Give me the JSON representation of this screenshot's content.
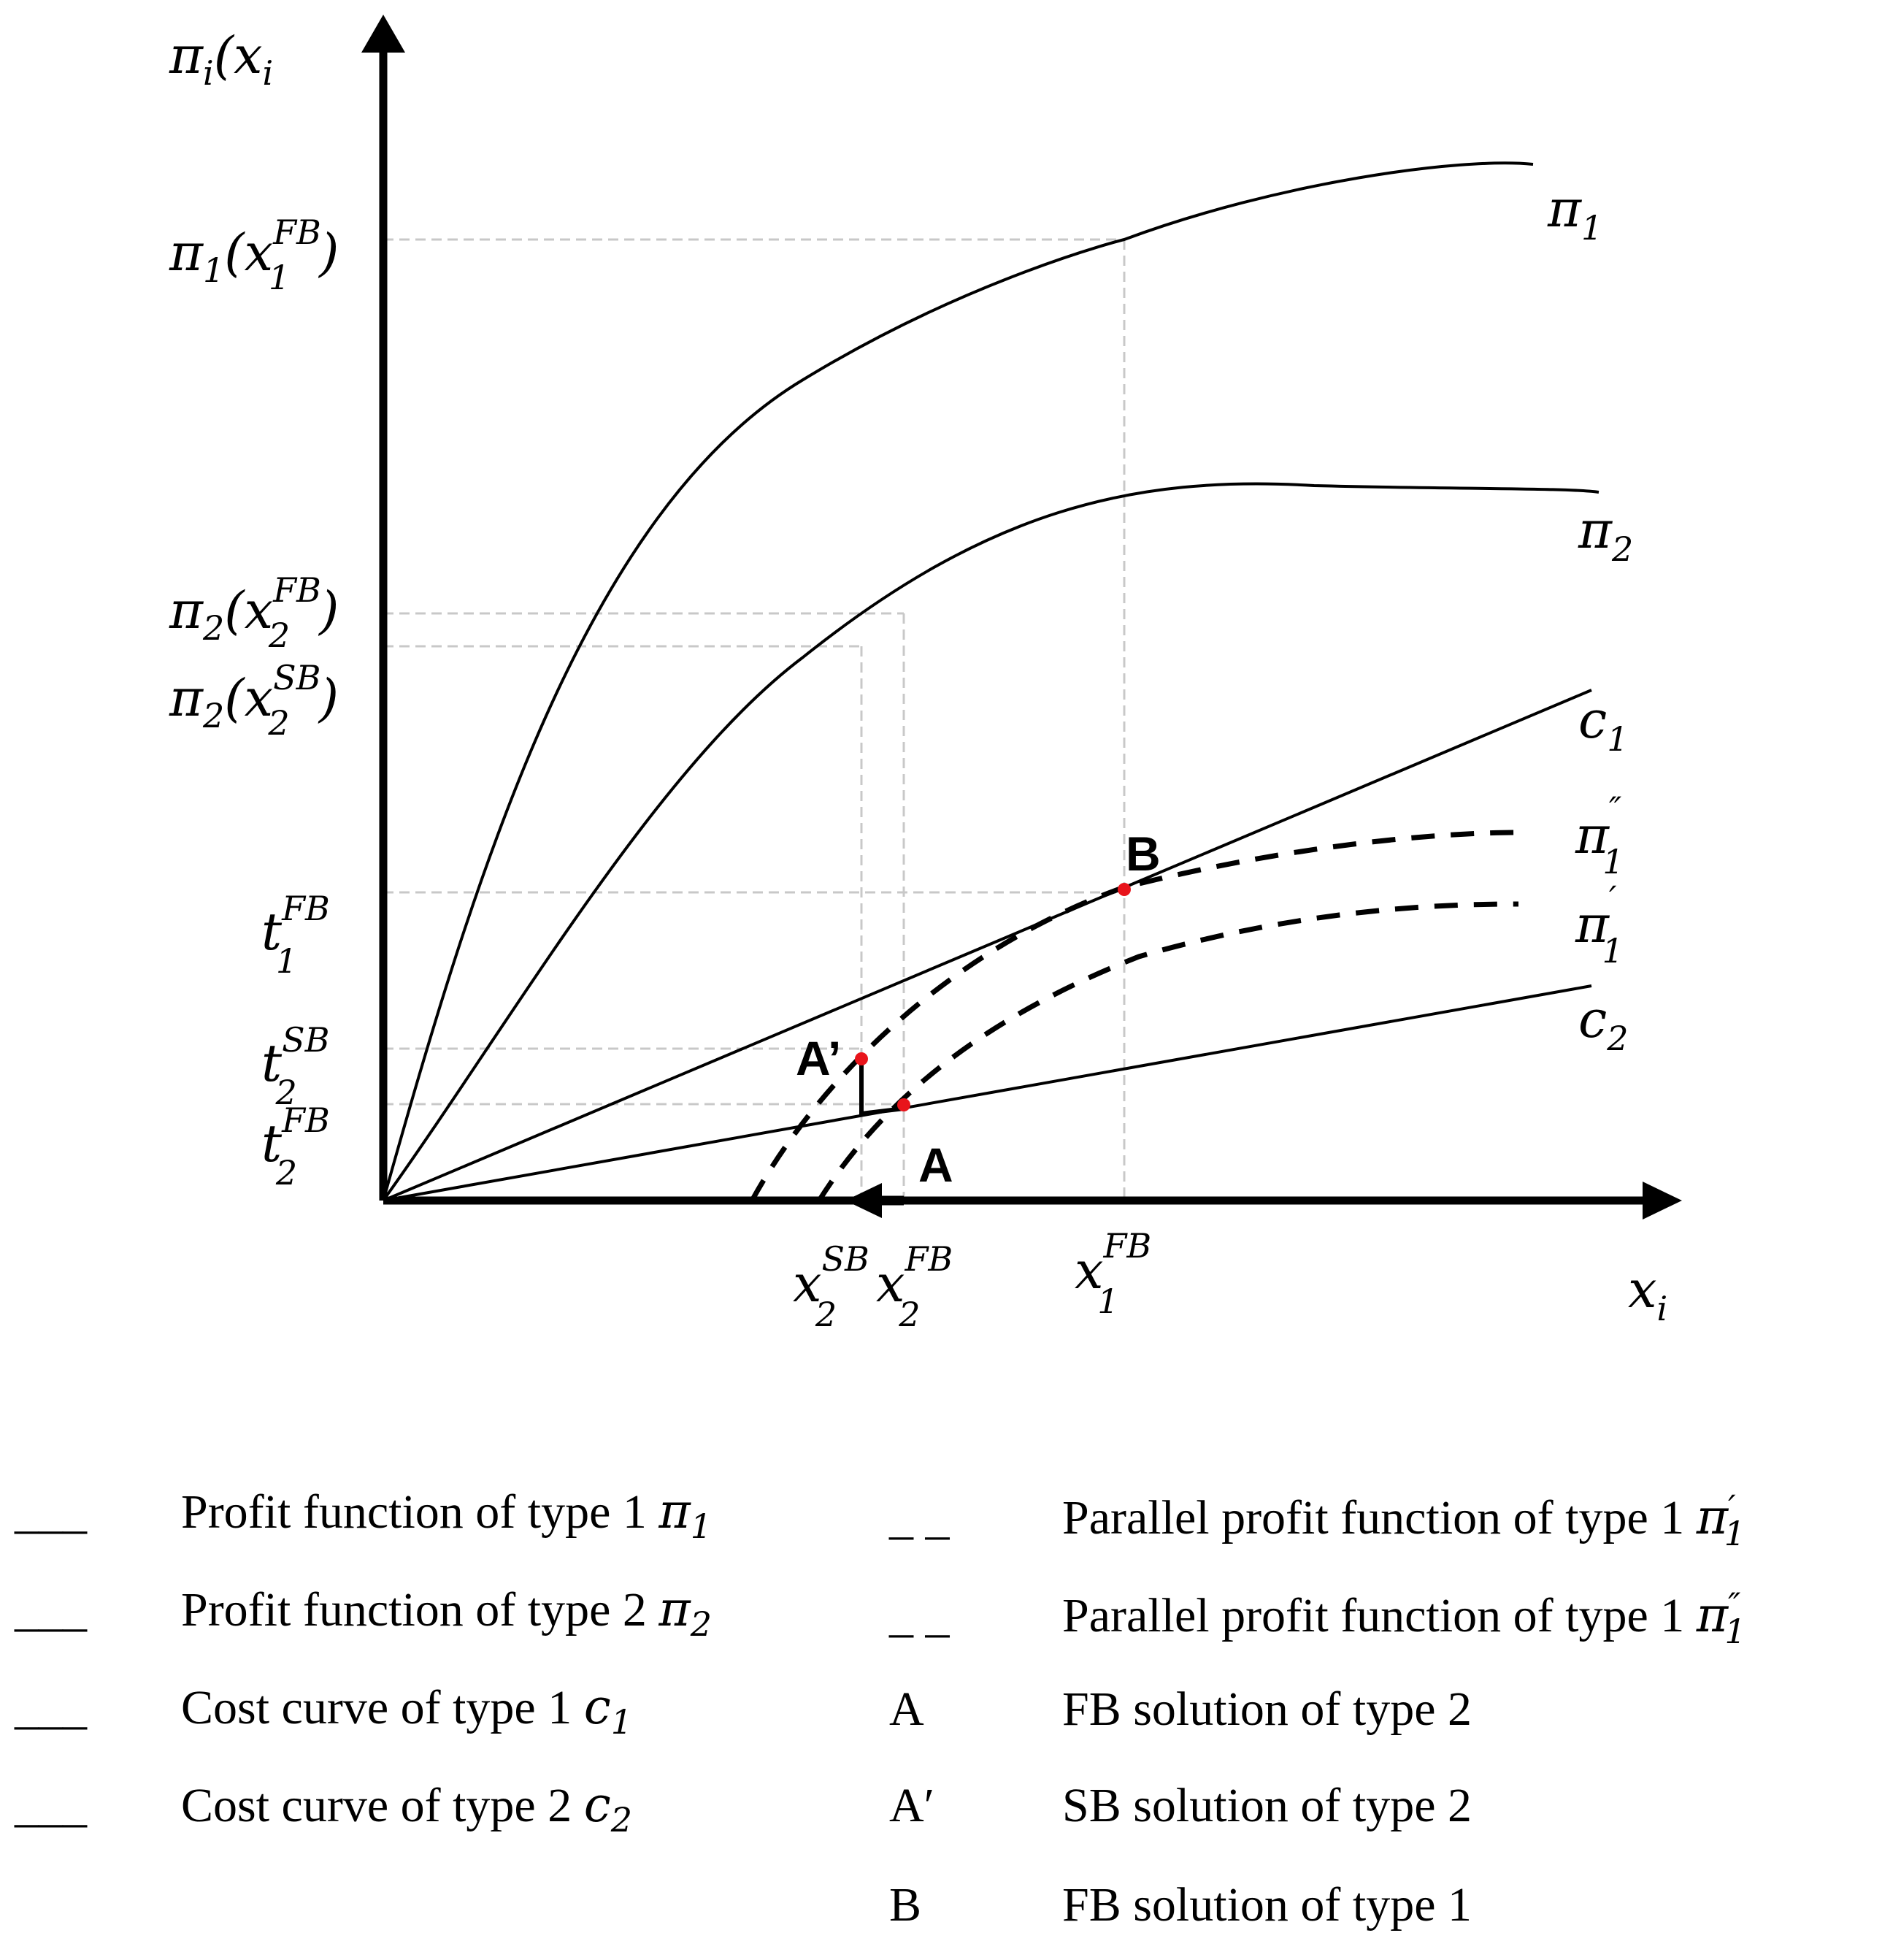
{
  "axes": {
    "y_label": {
      "base": "π",
      "sub": "i",
      "rest": "(x",
      "sub2": "i"
    },
    "x_label": {
      "base": "x",
      "sub": "i"
    }
  },
  "y_ticks": [
    {
      "id": "pi1-fb",
      "base": "π",
      "sub": "1",
      "open": "(x",
      "sup": "FB",
      "sub2": "1",
      "close": ")"
    },
    {
      "id": "pi2-fb",
      "base": "π",
      "sub": "2",
      "open": "(x",
      "sup": "FB",
      "sub2": "2",
      "close": ")"
    },
    {
      "id": "pi2-sb",
      "base": "π",
      "sub": "2",
      "open": "(x",
      "sup": "SB",
      "sub2": "2",
      "close": ")"
    },
    {
      "id": "t1-fb",
      "base": "t",
      "sup": "FB",
      "sub": "1"
    },
    {
      "id": "t2-sb",
      "base": "t",
      "sup": "SB",
      "sub": "2"
    },
    {
      "id": "t2-fb",
      "base": "t",
      "sup": "FB",
      "sub": "2"
    }
  ],
  "x_ticks": [
    {
      "id": "x2-sb",
      "base": "x",
      "sup": "SB",
      "sub": "2"
    },
    {
      "id": "x2-fb",
      "base": "x",
      "sup": "FB",
      "sub": "2"
    },
    {
      "id": "x1-fb",
      "base": "x",
      "sup": "FB",
      "sub": "1"
    }
  ],
  "curves": [
    {
      "id": "pi1",
      "base": "π",
      "sub": "1",
      "style": "solid"
    },
    {
      "id": "pi2",
      "base": "π",
      "sub": "2",
      "style": "solid"
    },
    {
      "id": "c1",
      "base": "c",
      "sub": "1",
      "style": "solid"
    },
    {
      "id": "pi1-dprime",
      "base": "π",
      "sup": "″",
      "sub": "1",
      "style": "dashed"
    },
    {
      "id": "pi1-prime",
      "base": "π",
      "sup": "′",
      "sub": "1",
      "style": "dashed"
    },
    {
      "id": "c2",
      "base": "c",
      "sub": "2",
      "style": "solid"
    }
  ],
  "points": [
    {
      "id": "A",
      "label": "A",
      "color": "#e8141b"
    },
    {
      "id": "A-prime",
      "label": "A’",
      "color": "#e8141b"
    },
    {
      "id": "B",
      "label": "B",
      "color": "#e8141b"
    }
  ],
  "legend": {
    "left": [
      {
        "symbol": "___",
        "text": "Profit function of type 1 ",
        "math_base": "π",
        "math_sub": "1"
      },
      {
        "symbol": "___",
        "text": "Profit function of type 2 ",
        "math_base": "π",
        "math_sub": "2"
      },
      {
        "symbol": "___",
        "text": "Cost curve of type 1 ",
        "math_base": "c",
        "math_sub": "1"
      },
      {
        "symbol": "___",
        "text": "Cost curve of type 2 ",
        "math_base": "c",
        "math_sub": "2"
      }
    ],
    "right": [
      {
        "symbol": "_ _",
        "text": "Parallel profit function of type 1 ",
        "math_base": "π",
        "math_sup": "′",
        "math_sub": "1"
      },
      {
        "symbol": "_ _",
        "text": "Parallel profit function of type 1 ",
        "math_base": "π",
        "math_sup": "″",
        "math_sub": "1"
      },
      {
        "symbol": "A",
        "text": "FB solution of type 2"
      },
      {
        "symbol": "A′",
        "text": "SB solution of type 2"
      },
      {
        "symbol": "B",
        "text": "FB solution of type 1"
      }
    ]
  }
}
